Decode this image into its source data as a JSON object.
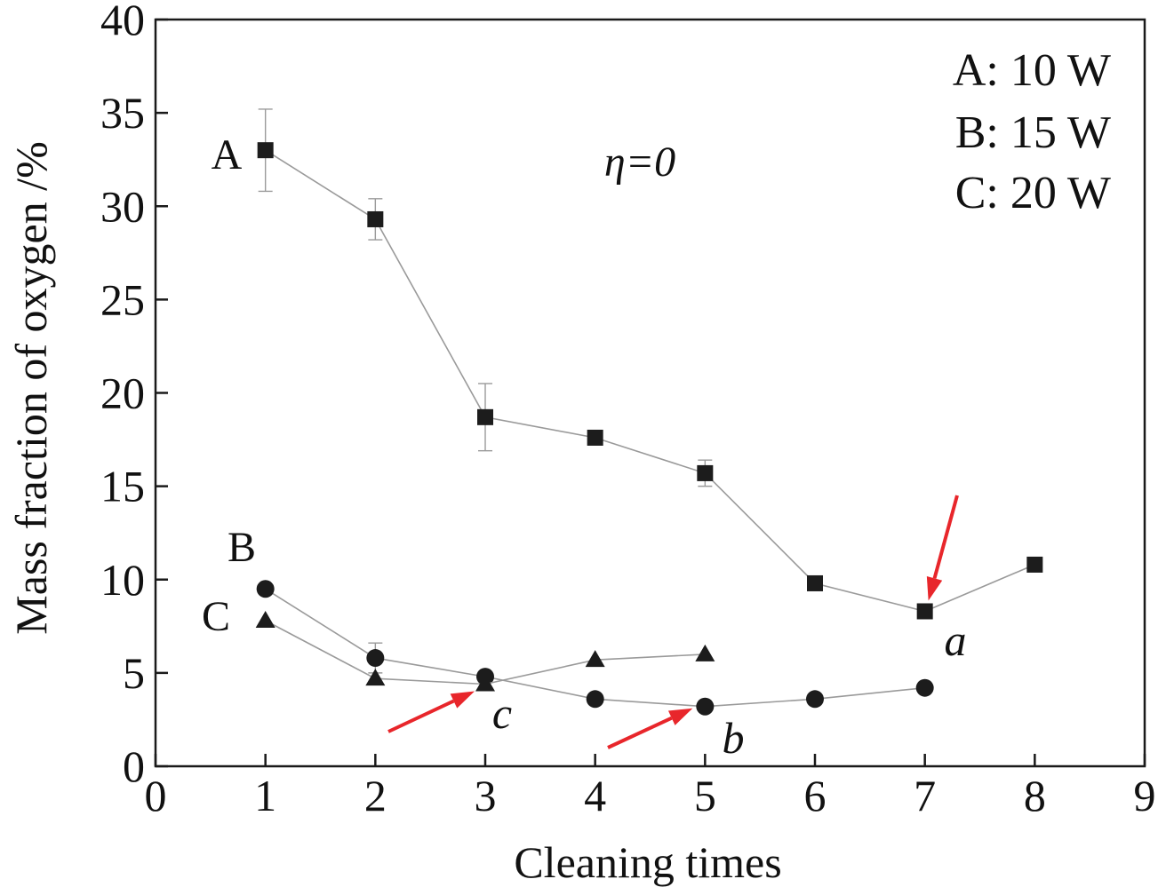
{
  "chart_data": {
    "type": "line",
    "xlabel": "Cleaning times",
    "ylabel": "Mass fraction of oxygen /%",
    "xlim": [
      0,
      9
    ],
    "ylim": [
      0,
      40
    ],
    "xticks": [
      "0",
      "1",
      "2",
      "3",
      "4",
      "5",
      "6",
      "7",
      "8",
      "9"
    ],
    "yticks": [
      "0",
      "5",
      "10",
      "15",
      "20",
      "25",
      "30",
      "35",
      "40"
    ],
    "grid": false,
    "legend_position": "top-right",
    "legend": [
      "A: 10 W",
      "B: 15 W",
      "C: 20 W"
    ],
    "annotation_eta": "η=0",
    "series": [
      {
        "name": "A",
        "marker": "square",
        "x": [
          1,
          2,
          3,
          4,
          5,
          6,
          7,
          8
        ],
        "y": [
          33.0,
          29.3,
          18.7,
          17.6,
          15.7,
          9.8,
          8.3,
          10.8
        ],
        "err": [
          2.2,
          1.1,
          1.8,
          0,
          0.7,
          0,
          0,
          0
        ]
      },
      {
        "name": "B",
        "marker": "circle",
        "x": [
          1,
          2,
          3,
          4,
          5,
          6,
          7
        ],
        "y": [
          9.5,
          5.8,
          4.8,
          3.6,
          3.2,
          3.6,
          4.2
        ],
        "err": [
          0,
          0.8,
          0,
          0,
          0,
          0,
          0
        ]
      },
      {
        "name": "C",
        "marker": "triangle",
        "x": [
          1,
          2,
          3,
          4,
          5
        ],
        "y": [
          7.8,
          4.7,
          4.4,
          5.7,
          6.0
        ],
        "err": [
          0,
          0,
          0,
          0,
          0
        ]
      }
    ],
    "point_annotations": [
      {
        "label": "a",
        "x": 7,
        "y": 8.3
      },
      {
        "label": "b",
        "x": 5,
        "y": 3.2
      },
      {
        "label": "c",
        "x": 3,
        "y": 4.4
      }
    ],
    "arrow_color": "#e8262b"
  }
}
